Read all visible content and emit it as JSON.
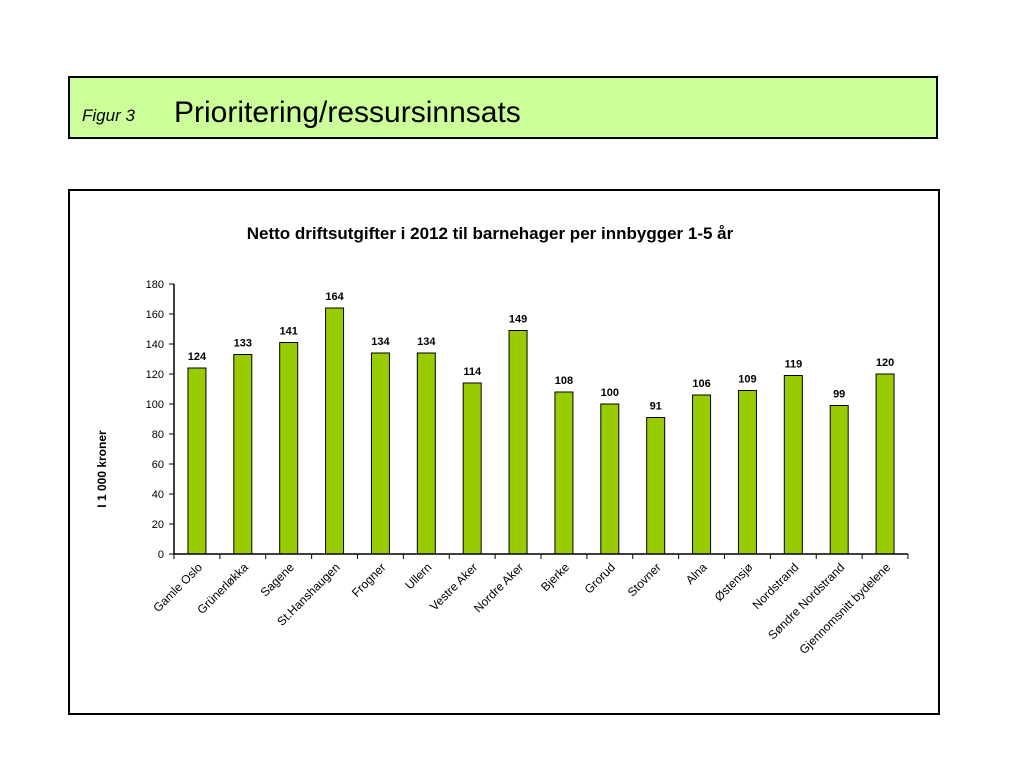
{
  "header": {
    "figure_label": "Figur 3",
    "title": "Prioritering/ressursinnsats"
  },
  "colors": {
    "header_background": "#ccff99",
    "bar_fill": "#99cc00"
  },
  "chart_data": {
    "type": "bar",
    "title": "Netto driftsutgifter i 2012 til barnehager per innbygger 1-5 år",
    "xlabel": "",
    "ylabel": "I 1 000 kroner",
    "ylim": [
      0,
      180
    ],
    "yticks": [
      0,
      20,
      40,
      60,
      80,
      100,
      120,
      140,
      160,
      180
    ],
    "grid": false,
    "legend": "none",
    "categories": [
      "Gamle Oslo",
      "Grünerløkka",
      "Sagene",
      "St.Hanshaugen",
      "Frogner",
      "Ullern",
      "Vestre Aker",
      "Nordre Aker",
      "Bjerke",
      "Grorud",
      "Stovner",
      "Alna",
      "Østensjø",
      "Nordstrand",
      "Søndre Nordstrand",
      "Gjennomsnitt bydelene"
    ],
    "values": [
      124,
      133,
      141,
      164,
      134,
      134,
      114,
      149,
      108,
      100,
      91,
      106,
      109,
      119,
      99,
      120
    ],
    "data_labels": [
      "124",
      "133",
      "141",
      "164",
      "134",
      "134",
      "114",
      "149",
      "108",
      "100",
      "91",
      "106",
      "109",
      "119",
      "99",
      "120"
    ]
  }
}
